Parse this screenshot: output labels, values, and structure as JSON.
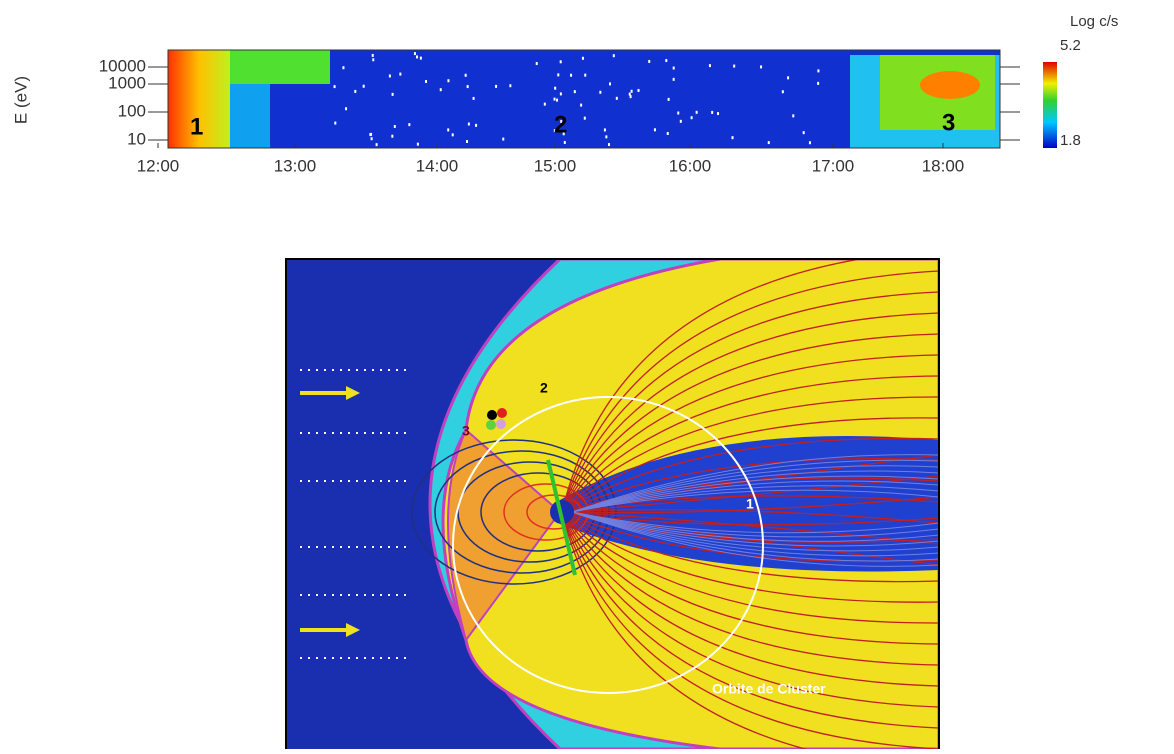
{
  "spectrogram": {
    "y_label": "E (eV)",
    "y_ticks": [
      "10000",
      "1000",
      "100",
      "10"
    ],
    "x_ticks": [
      "12:00",
      "13:00",
      "14:00",
      "15:00",
      "16:00",
      "17:00",
      "18:00"
    ],
    "colorbar": {
      "title": "Log c/s",
      "max": "5.2",
      "min": "1.8"
    },
    "markers": [
      "1",
      "2",
      "3"
    ]
  },
  "diagram": {
    "markers": [
      "2",
      "3",
      "1"
    ],
    "orbit_label": "Orbite de Cluster"
  }
}
